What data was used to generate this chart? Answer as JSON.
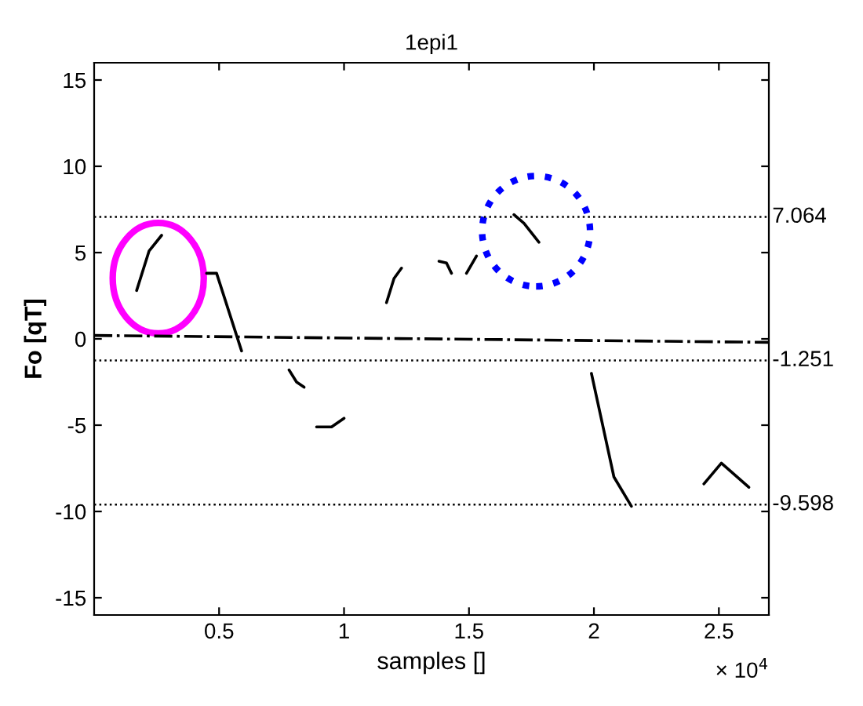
{
  "chart_data": {
    "type": "line",
    "title": "1epi1",
    "xlabel": "samples []",
    "ylabel": "Fo [qT]",
    "xlim": [
      0,
      2.7
    ],
    "ylim": [
      -16,
      16
    ],
    "xticks": [
      0.5,
      1,
      1.5,
      2,
      2.5
    ],
    "yticks": [
      -15,
      -10,
      -5,
      0,
      5,
      10,
      15
    ],
    "grid": false,
    "legend": false,
    "marker": "none",
    "series": [
      {
        "color": "#000000",
        "line_style": "solid",
        "x": [
          0.17,
          0.22,
          0.27,
          null,
          0.45,
          0.49,
          0.59,
          null,
          0.78,
          0.81,
          0.84,
          null,
          0.89,
          0.95,
          1.0,
          null,
          1.17,
          1.2,
          1.23,
          null,
          1.38,
          1.41,
          1.43,
          null,
          1.49,
          1.53,
          null,
          1.68,
          1.72,
          1.78,
          null,
          1.99,
          2.08,
          2.15,
          null,
          2.44,
          2.51,
          2.62
        ],
        "values": [
          2.8,
          5.1,
          6.0,
          null,
          3.8,
          3.8,
          -0.7,
          null,
          -1.8,
          -2.5,
          -2.8,
          null,
          -5.1,
          -5.1,
          -4.6,
          null,
          2.1,
          3.5,
          4.1,
          null,
          4.5,
          4.4,
          3.8,
          null,
          3.8,
          4.8,
          null,
          7.2,
          6.7,
          5.6,
          null,
          -2.0,
          -8.0,
          -9.7,
          null,
          -8.4,
          -7.2,
          -8.6
        ]
      },
      {
        "color": "#000000",
        "line_style": "dashdot",
        "x": [
          0,
          2.7
        ],
        "values": [
          0.2,
          -0.2
        ]
      }
    ],
    "ref_lines": [
      {
        "axis": "y",
        "value": 7.064,
        "label": "7.064",
        "color": "#000000",
        "line_style": "dotted"
      },
      {
        "axis": "y",
        "value": -1.251,
        "label": "-1.251",
        "color": "#000000",
        "line_style": "dotted"
      },
      {
        "axis": "y",
        "value": -9.598,
        "label": "-9.598",
        "color": "#000000",
        "line_style": "dotted"
      }
    ],
    "annotations": [
      "× 10$^{4}$"
    ]
  }
}
